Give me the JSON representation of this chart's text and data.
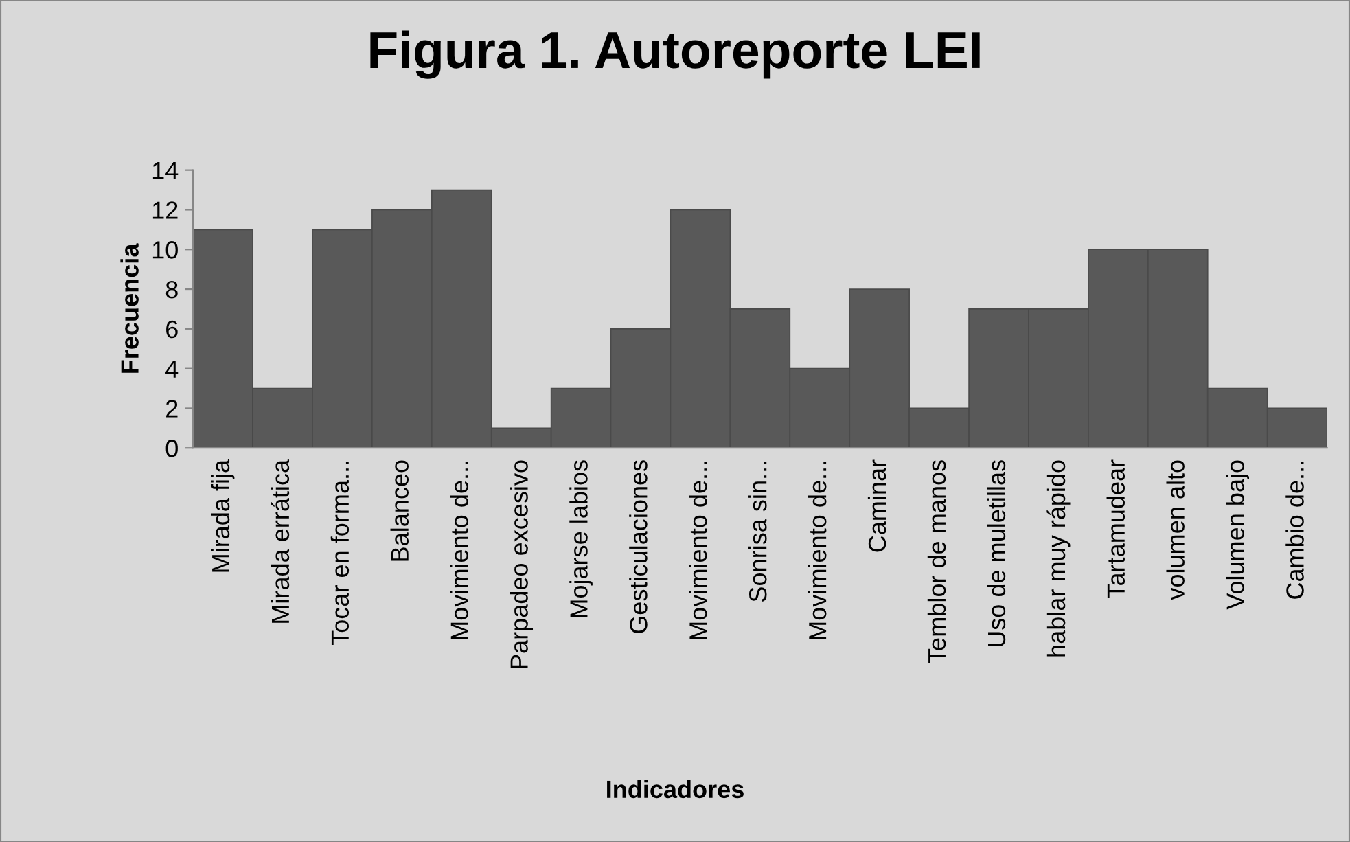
{
  "chart_data": {
    "type": "bar",
    "title": "Figura 1. Autoreporte LEI",
    "xlabel": "Indicadores",
    "ylabel": "Frecuencia",
    "categories": [
      "Mirada fija",
      "Mirada errática",
      "Tocar en forma...",
      "Balanceo",
      "Movimiento de...",
      "Parpadeo excesivo",
      "Mojarse labios",
      "Gesticulaciones",
      "Movimiento de...",
      "Sonrisa sin...",
      "Movimiento de...",
      "Caminar",
      "Temblor de manos",
      "Uso de muletillas",
      "hablar muy rápido",
      "Tartamudear",
      "volumen alto",
      "Volumen bajo",
      "Cambio de..."
    ],
    "values": [
      11,
      3,
      11,
      12,
      13,
      1,
      3,
      6,
      12,
      7,
      4,
      8,
      2,
      7,
      7,
      10,
      10,
      3,
      2
    ],
    "color": "#595959",
    "ylim": [
      0,
      14
    ],
    "yticks": [
      0,
      2,
      4,
      6,
      8,
      10,
      12,
      14
    ],
    "grid": false,
    "legend": false
  }
}
